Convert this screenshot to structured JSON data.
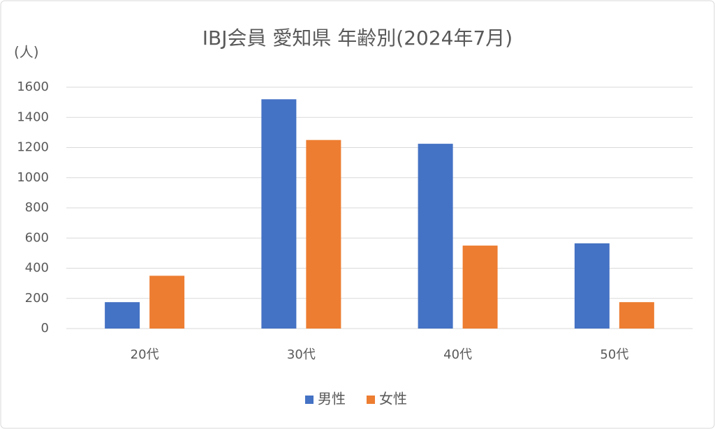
{
  "chart_data": {
    "type": "bar",
    "title": "IBJ会員 愛知県 年齢別(2024年7月)",
    "y_label": "(人)",
    "categories": [
      "20代",
      "30代",
      "40代",
      "50代"
    ],
    "series": [
      {
        "name": "男性",
        "color": "#4472c4",
        "values": [
          175,
          1520,
          1225,
          565
        ]
      },
      {
        "name": "女性",
        "color": "#ed7d31",
        "values": [
          350,
          1250,
          550,
          175
        ]
      }
    ],
    "ylim": [
      0,
      1600
    ],
    "yticks": [
      0,
      200,
      400,
      600,
      800,
      1000,
      1200,
      1400,
      1600
    ],
    "grid": true,
    "legend": "bottom"
  }
}
